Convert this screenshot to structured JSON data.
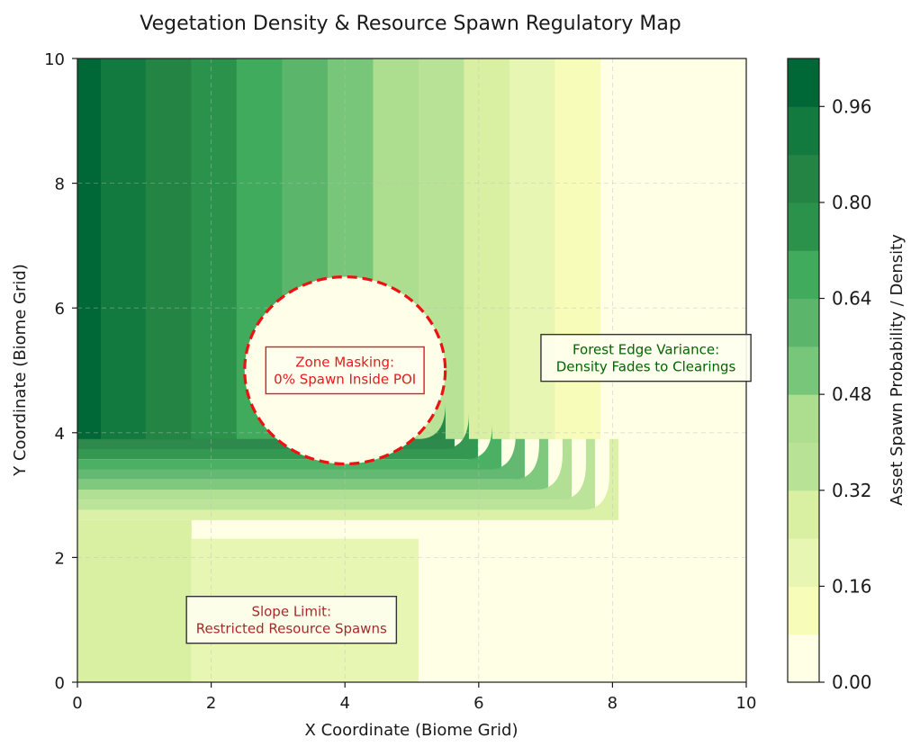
{
  "chart_data": {
    "type": "heatmap",
    "subtype": "filled-contour",
    "title": "Vegetation Density & Resource Spawn Regulatory Map",
    "xlabel": "X Coordinate (Biome Grid)",
    "ylabel": "Y Coordinate (Biome Grid)",
    "xlim": [
      0,
      10
    ],
    "ylim": [
      0,
      10
    ],
    "x_ticks": [
      0,
      2,
      4,
      6,
      8,
      10
    ],
    "y_ticks": [
      0,
      2,
      4,
      6,
      8,
      10
    ],
    "grid": true,
    "colormap": "Greens",
    "colorbar": {
      "label": "Asset Spawn Probability / Density",
      "placement": "right",
      "range": [
        0,
        1.04
      ],
      "tick_values": [
        0,
        0.16,
        0.32,
        0.48,
        0.64,
        0.8,
        0.96
      ],
      "tick_labels": [
        "0.00",
        "0.16",
        "0.32",
        "0.48",
        "0.64",
        "0.80",
        "0.96"
      ],
      "levels": [
        0,
        0.08,
        0.16,
        0.24,
        0.32,
        0.4,
        0.48,
        0.56,
        0.64,
        0.72,
        0.8,
        0.88,
        0.96,
        1.04
      ],
      "colors": [
        "#ffffe5",
        "#f7fcb9",
        "#e8f6b4",
        "#d9f0a3",
        "#b8e296",
        "#addd8e",
        "#78c679",
        "#5bb56a",
        "#41ab5d",
        "#2a924a",
        "#238443",
        "#137a3f",
        "#006837",
        "#004529"
      ]
    },
    "regions": [
      {
        "x_range": [
          0,
          0.35
        ],
        "y_range": [
          3.9,
          10
        ],
        "value": 1.0
      },
      {
        "x_range": [
          0.35,
          1.02
        ],
        "y_range": [
          3.9,
          10
        ],
        "value": 0.92
      },
      {
        "x_range": [
          1.02,
          1.7
        ],
        "y_range": [
          3.9,
          10
        ],
        "value": 0.84
      },
      {
        "x_range": [
          1.7,
          2.38
        ],
        "y_range": [
          3.9,
          10
        ],
        "value": 0.76
      },
      {
        "x_range": [
          2.38,
          3.06
        ],
        "y_range": [
          3.9,
          10
        ],
        "value": 0.68
      },
      {
        "x_range": [
          3.06,
          3.74
        ],
        "y_range": [
          3.9,
          10
        ],
        "value": 0.6
      },
      {
        "x_range": [
          3.74,
          4.42
        ],
        "y_range": [
          3.9,
          10
        ],
        "value": 0.52
      },
      {
        "x_range": [
          4.42,
          5.1
        ],
        "y_range": [
          3.9,
          10
        ],
        "value": 0.44
      },
      {
        "x_range": [
          5.1,
          5.78
        ],
        "y_range": [
          3.9,
          10
        ],
        "value": 0.36
      },
      {
        "x_range": [
          5.78,
          6.46
        ],
        "y_range": [
          3.9,
          10
        ],
        "value": 0.28
      },
      {
        "x_range": [
          6.46,
          7.14
        ],
        "y_range": [
          3.9,
          10
        ],
        "value": 0.2
      },
      {
        "x_range": [
          7.14,
          7.82
        ],
        "y_range": [
          3.9,
          10
        ],
        "value": 0.12
      },
      {
        "x_range": [
          7.82,
          10
        ],
        "y_range": [
          0,
          10
        ],
        "value": 0.04
      },
      {
        "x_range": [
          0,
          1.7
        ],
        "y_range": [
          0,
          2.6
        ],
        "value": 0.28
      },
      {
        "x_range": [
          1.7,
          5.1
        ],
        "y_range": [
          0,
          2.3
        ],
        "value": 0.2
      },
      {
        "x_range": [
          5.1,
          7.82
        ],
        "y_range": [
          0,
          2.3
        ],
        "value": 0.04
      }
    ],
    "masked_zone": {
      "shape": "circle",
      "center": [
        4,
        5
      ],
      "radius": 1.5,
      "value": 0
    },
    "annotations": [
      {
        "text_lines": [
          "Zone Masking:",
          "0% Spawn Inside POI"
        ],
        "x": 4.0,
        "y": 5.0,
        "color": "#e41a1c",
        "border": "#e41a1c"
      },
      {
        "text_lines": [
          "Forest Edge Variance:",
          "Density Fades to Clearings"
        ],
        "x": 8.5,
        "y": 5.2,
        "color": "#006400",
        "border": "#333333"
      },
      {
        "text_lines": [
          "Slope Limit:",
          "Restricted Resource Spawns"
        ],
        "x": 3.2,
        "y": 1.0,
        "color": "#a52a2a",
        "border": "#333333"
      }
    ]
  }
}
